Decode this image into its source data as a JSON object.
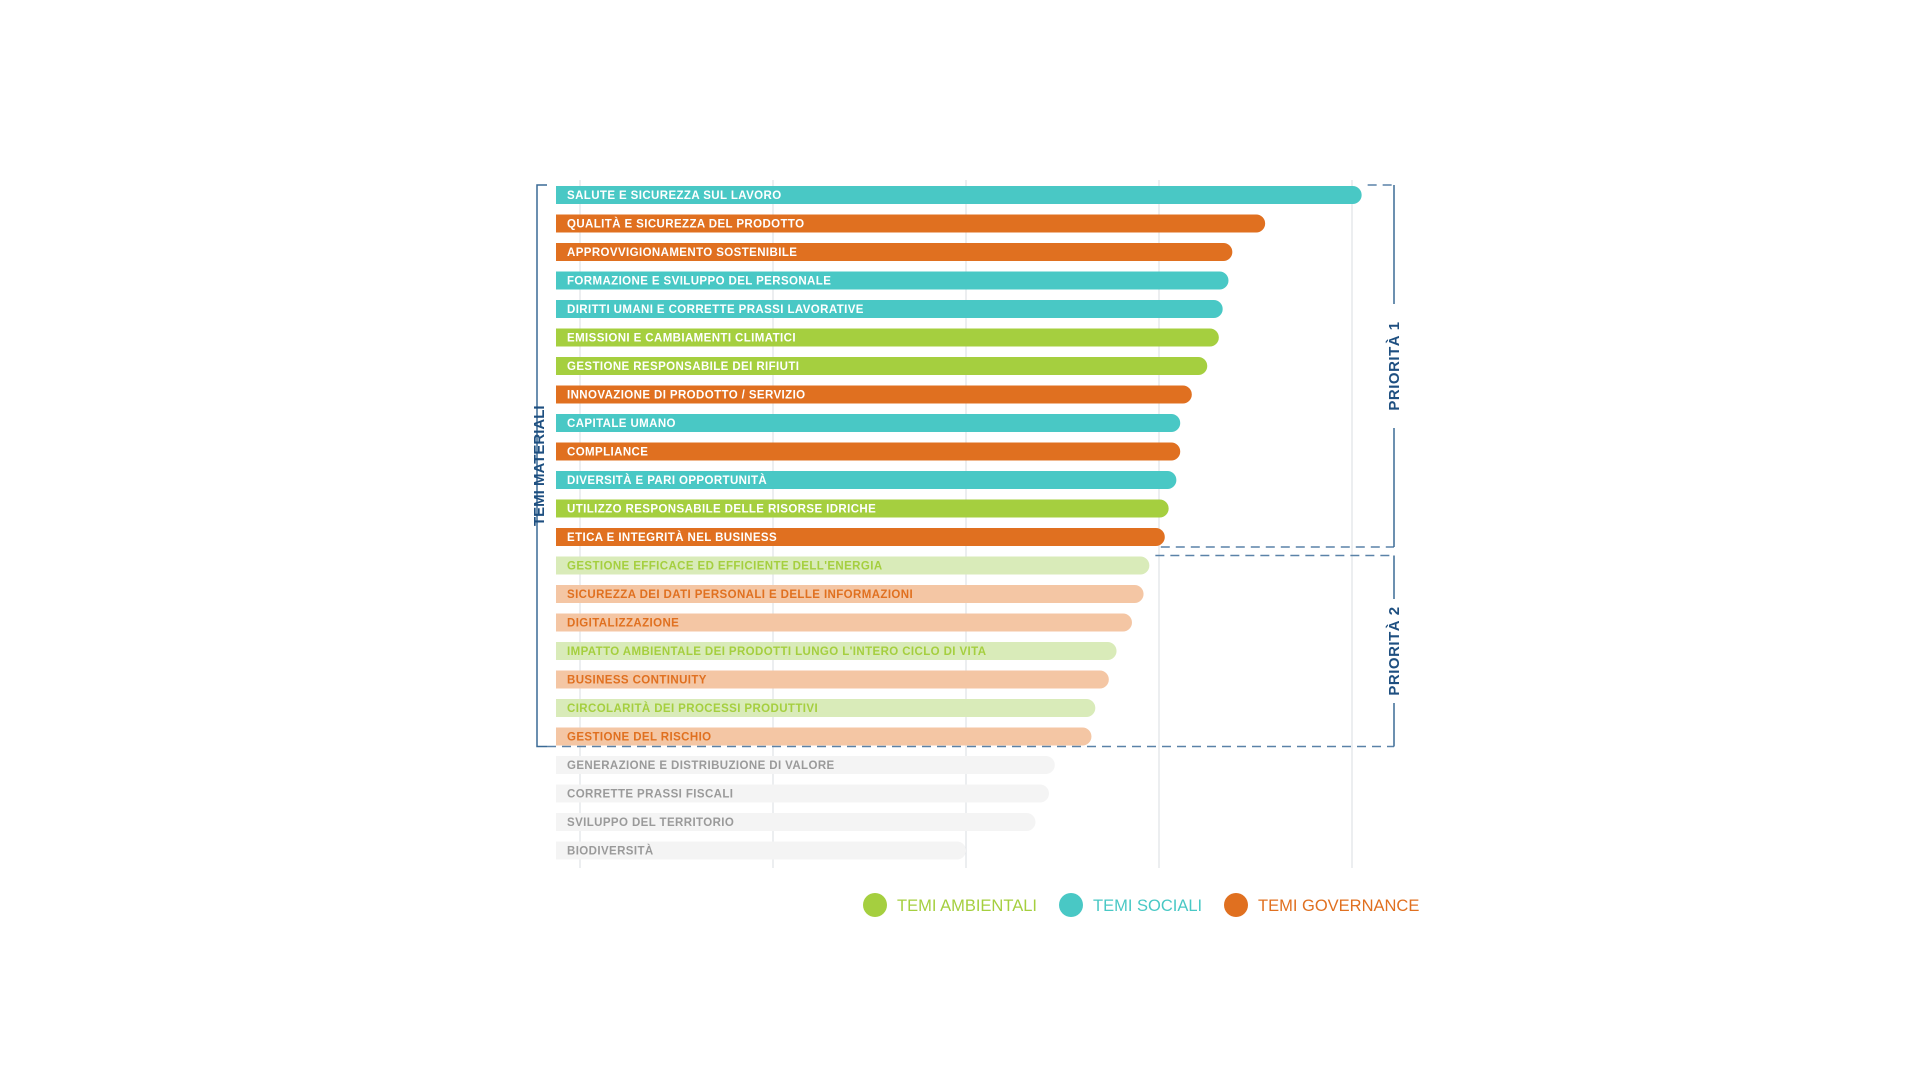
{
  "chart_data": {
    "type": "bar",
    "orientation": "horizontal",
    "axis_label": "TEMI MATERIALI",
    "grid": true,
    "xlim": [
      0,
      4.2
    ],
    "x_gridlines": [
      0,
      1,
      2,
      3,
      4
    ],
    "legend_position": "bottom-right",
    "legend": [
      {
        "label": "TEMI AMBIENTALI",
        "category": "ambientali"
      },
      {
        "label": "TEMI SOCIALI",
        "category": "sociali"
      },
      {
        "label": "TEMI GOVERNANCE",
        "category": "governance"
      }
    ],
    "colors": {
      "ambientali": "#a5cf3f",
      "sociali": "#49c8c5",
      "governance": "#e07020",
      "ambientali_light": "#d9ebb9",
      "sociali_light": "#c2ecea",
      "governance_light": "#f4c6a4",
      "none": "#f4f4f4",
      "none_text": "#9a9a9a",
      "grid": "#d9dde2",
      "bracket": "#3a6a96",
      "dash": "#5a82a8",
      "priority_text": "#1e4f80"
    },
    "priority_groups": [
      {
        "label": "PRIORITÀ 1",
        "first": 0,
        "last": 12
      },
      {
        "label": "PRIORITÀ 2",
        "first": 13,
        "last": 19
      }
    ],
    "items": [
      {
        "label": "SALUTE E SICUREZZA SUL LAVORO",
        "value": 4.05,
        "category": "sociali",
        "priority": 1
      },
      {
        "label": "QUALITÀ E SICUREZZA DEL PRODOTTO",
        "value": 3.55,
        "category": "governance",
        "priority": 1
      },
      {
        "label": "APPROVVIGIONAMENTO SOSTENIBILE",
        "value": 3.38,
        "category": "governance",
        "priority": 1
      },
      {
        "label": "FORMAZIONE E SVILUPPO DEL PERSONALE",
        "value": 3.36,
        "category": "sociali",
        "priority": 1
      },
      {
        "label": "DIRITTI UMANI E CORRETTE PRASSI LAVORATIVE",
        "value": 3.33,
        "category": "sociali",
        "priority": 1
      },
      {
        "label": "EMISSIONI E CAMBIAMENTI CLIMATICI",
        "value": 3.31,
        "category": "ambientali",
        "priority": 1
      },
      {
        "label": "GESTIONE RESPONSABILE DEI RIFIUTI",
        "value": 3.25,
        "category": "ambientali",
        "priority": 1
      },
      {
        "label": "INNOVAZIONE DI PRODOTTO / SERVIZIO",
        "value": 3.17,
        "category": "governance",
        "priority": 1
      },
      {
        "label": "CAPITALE UMANO",
        "value": 3.11,
        "category": "sociali",
        "priority": 1
      },
      {
        "label": "COMPLIANCE",
        "value": 3.11,
        "category": "governance",
        "priority": 1
      },
      {
        "label": "DIVERSITÀ E PARI OPPORTUNITÀ",
        "value": 3.09,
        "category": "sociali",
        "priority": 1
      },
      {
        "label": "UTILIZZO RESPONSABILE DELLE RISORSE IDRICHE",
        "value": 3.05,
        "category": "ambientali",
        "priority": 1
      },
      {
        "label": "ETICA E INTEGRITÀ NEL BUSINESS",
        "value": 3.03,
        "category": "governance",
        "priority": 1
      },
      {
        "label": "GESTIONE EFFICACE ED EFFICIENTE DELL'ENERGIA",
        "value": 2.95,
        "category": "ambientali",
        "priority": 2
      },
      {
        "label": "SICUREZZA DEI DATI PERSONALI E DELLE INFORMAZIONI",
        "value": 2.92,
        "category": "governance",
        "priority": 2
      },
      {
        "label": "DIGITALIZZAZIONE",
        "value": 2.86,
        "category": "governance",
        "priority": 2
      },
      {
        "label": "IMPATTO AMBIENTALE DEI PRODOTTI LUNGO L'INTERO CICLO DI VITA",
        "value": 2.78,
        "category": "ambientali",
        "priority": 2
      },
      {
        "label": "BUSINESS CONTINUITY",
        "value": 2.74,
        "category": "governance",
        "priority": 2
      },
      {
        "label": "CIRCOLARITÀ DEI PROCESSI PRODUTTIVI",
        "value": 2.67,
        "category": "ambientali",
        "priority": 2
      },
      {
        "label": "GESTIONE DEL RISCHIO",
        "value": 2.65,
        "category": "governance",
        "priority": 2
      },
      {
        "label": "GENERAZIONE E DISTRIBUZIONE DI VALORE",
        "value": 2.46,
        "category": "none",
        "priority": 0
      },
      {
        "label": "CORRETTE PRASSI FISCALI",
        "value": 2.43,
        "category": "none",
        "priority": 0
      },
      {
        "label": "SVILUPPO DEL TERRITORIO",
        "value": 2.36,
        "category": "none",
        "priority": 0
      },
      {
        "label": "BIODIVERSITÀ",
        "value": 2.0,
        "category": "none",
        "priority": 0
      }
    ]
  }
}
